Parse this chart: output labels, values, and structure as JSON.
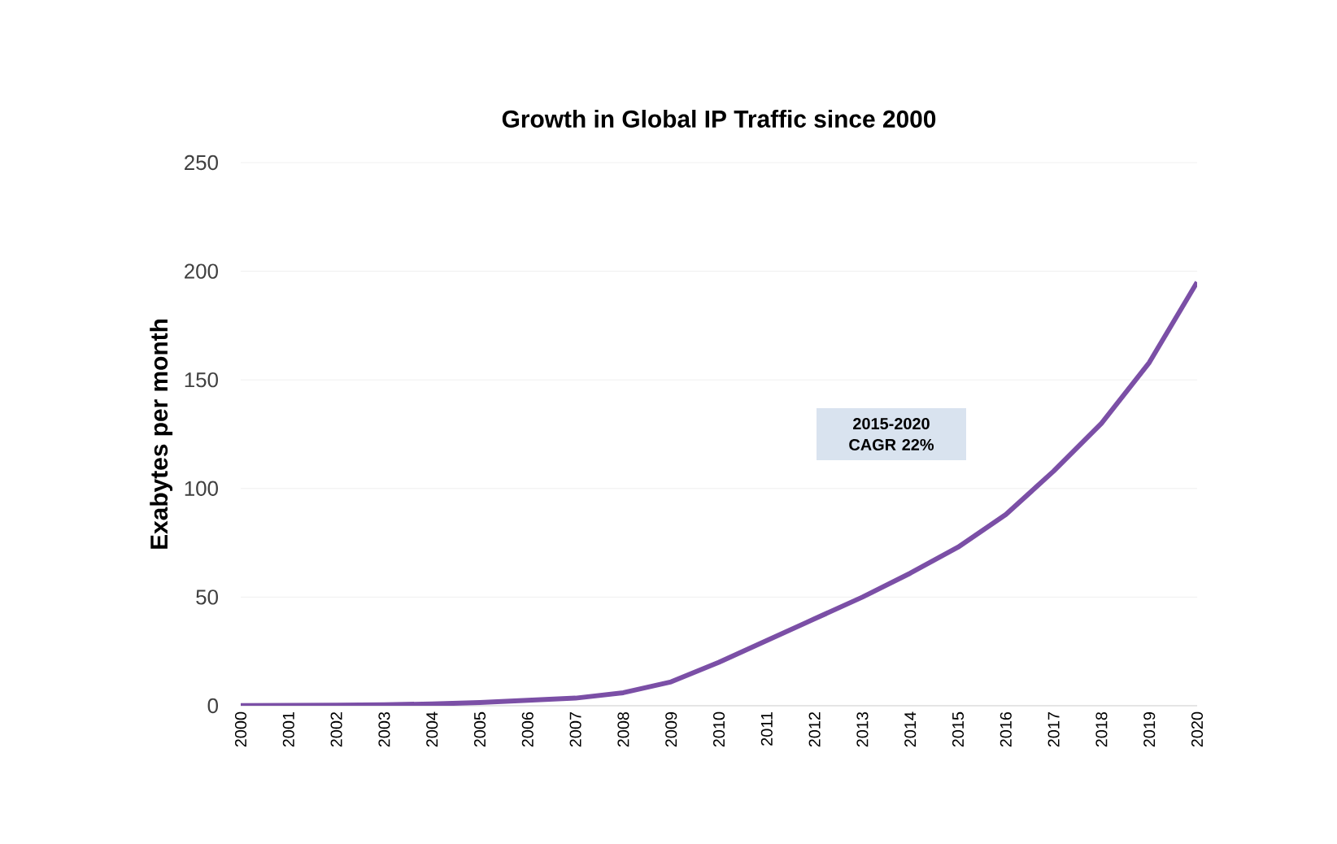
{
  "chart_data": {
    "type": "line",
    "title": "Growth in Global IP Traffic since 2000",
    "ylabel": "Exabytes per month",
    "categories": [
      "2000",
      "2001",
      "2002",
      "2003",
      "2004",
      "2005",
      "2006",
      "2007",
      "2008",
      "2009",
      "2010",
      "2011",
      "2012",
      "2013",
      "2014",
      "2015",
      "2016",
      "2017",
      "2018",
      "2019",
      "2020"
    ],
    "series": [
      {
        "color": "#7b4fa6",
        "values": [
          0.1,
          0.2,
          0.3,
          0.5,
          0.8,
          1.5,
          2.5,
          3.5,
          6,
          11,
          20,
          30,
          40,
          50,
          61,
          73,
          88,
          108,
          130,
          158,
          195
        ]
      }
    ],
    "ylim": [
      0,
      250
    ],
    "yticks": [
      0,
      50,
      100,
      150,
      200,
      250
    ],
    "grid": "y",
    "marker": "none",
    "line_style": "solid",
    "annotations": [
      "2015-2020 CAGR 22%"
    ]
  }
}
